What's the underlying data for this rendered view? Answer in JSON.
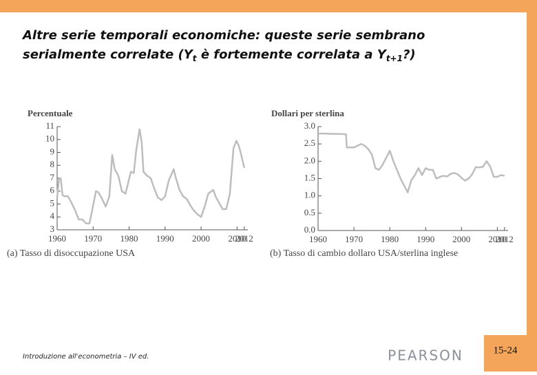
{
  "slide": {
    "title_line1": "Altre serie temporali economiche: queste serie sembrano",
    "title_line2": [
      "serialmente correlate (Y",
      "t",
      " è fortemente correlata a Y",
      "t+1",
      "?)"
    ],
    "footer": "Introduzione all'econometria – IV ed.",
    "publisher": "PEARSON",
    "page": "15-24"
  },
  "chart_data": [
    {
      "type": "line",
      "y_label": "Percentuale",
      "caption": "(a) Tasso di disoccupazione USA",
      "color": "#bdbdbd",
      "x": [
        1960,
        1960.5,
        1961,
        1961.5,
        1962,
        1963,
        1964,
        1965,
        1966,
        1967,
        1968,
        1969,
        1970,
        1970.8,
        1971.5,
        1972.5,
        1973.5,
        1974.5,
        1975.3,
        1976,
        1977,
        1978,
        1979,
        1980.5,
        1981.3,
        1982,
        1982.9,
        1983.5,
        1984,
        1985,
        1986,
        1987,
        1988,
        1989,
        1990,
        1991,
        1992.4,
        1993,
        1994,
        1995,
        1996,
        1997,
        1998,
        1999,
        2000,
        2001,
        2002,
        2003.4,
        2004,
        2005,
        2006,
        2007,
        2008,
        2009,
        2009.8,
        2010.5,
        2011,
        2012
      ],
      "values": [
        5.5,
        6.9,
        7.0,
        5.7,
        5.6,
        5.6,
        5.1,
        4.5,
        3.8,
        3.8,
        3.5,
        3.5,
        4.9,
        6.0,
        5.9,
        5.4,
        4.8,
        5.6,
        8.8,
        7.7,
        7.2,
        6.0,
        5.8,
        7.5,
        7.4,
        9.2,
        10.8,
        9.8,
        7.5,
        7.2,
        7.0,
        6.2,
        5.5,
        5.3,
        5.6,
        6.8,
        7.7,
        7.0,
        6.1,
        5.6,
        5.4,
        4.9,
        4.5,
        4.2,
        4.0,
        4.8,
        5.8,
        6.1,
        5.6,
        5.1,
        4.6,
        4.6,
        5.8,
        9.3,
        9.9,
        9.5,
        9.0,
        7.8
      ],
      "xlim": [
        1960,
        2013
      ],
      "xticks": [
        1960,
        1970,
        1980,
        1990,
        2000,
        2010,
        2012
      ],
      "ylim": [
        3,
        11
      ],
      "yticks": [
        3,
        4,
        5,
        6,
        7,
        8,
        9,
        10,
        11
      ]
    },
    {
      "type": "line",
      "y_label": "Dollari per sterlina",
      "caption": "(b) Tasso di cambio dollaro USA/sterlina inglese",
      "color": "#bdbdbd",
      "x": [
        1960,
        1962,
        1964,
        1966,
        1967.8,
        1968,
        1970,
        1971,
        1972,
        1973,
        1974,
        1975,
        1976,
        1977,
        1978,
        1979,
        1980,
        1981,
        1982,
        1983,
        1984,
        1985,
        1986,
        1987,
        1988,
        1989,
        1990,
        1991,
        1992,
        1993,
        1994,
        1995,
        1996,
        1997,
        1998,
        1999,
        2000,
        2001,
        2002,
        2003,
        2004,
        2005,
        2006,
        2007,
        2008,
        2009,
        2010,
        2011,
        2012
      ],
      "values": [
        2.8,
        2.8,
        2.79,
        2.79,
        2.78,
        2.4,
        2.4,
        2.45,
        2.5,
        2.45,
        2.35,
        2.2,
        1.8,
        1.75,
        1.9,
        2.1,
        2.3,
        2.0,
        1.75,
        1.5,
        1.3,
        1.1,
        1.45,
        1.6,
        1.8,
        1.6,
        1.8,
        1.75,
        1.75,
        1.5,
        1.55,
        1.58,
        1.56,
        1.64,
        1.66,
        1.62,
        1.52,
        1.44,
        1.5,
        1.63,
        1.83,
        1.82,
        1.84,
        2.0,
        1.85,
        1.55,
        1.55,
        1.6,
        1.58
      ],
      "xlim": [
        1960,
        2013
      ],
      "xticks": [
        1960,
        1970,
        1980,
        1990,
        2000,
        2010,
        2012
      ],
      "ylim": [
        0,
        3
      ],
      "yticks": [
        {
          "value": 0,
          "label": "0.0"
        },
        0.5,
        {
          "value": 1,
          "label": "1.0"
        },
        1.5,
        {
          "value": 2,
          "label": "2.0"
        },
        2.5,
        {
          "value": 3,
          "label": "3.0"
        }
      ]
    }
  ]
}
